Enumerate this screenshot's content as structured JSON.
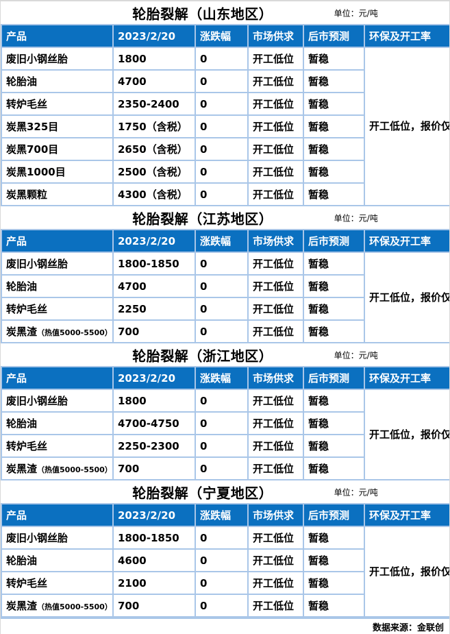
{
  "unit_label": "单位：元/吨",
  "note": "开工低位，报价仅供参考。",
  "columns": [
    "产品",
    "2023/2/20",
    "涨跌幅",
    "市场供求",
    "后市预测",
    "环保及开工率"
  ],
  "footer": {
    "source": "数据来源：金联创"
  },
  "colors": {
    "header_bg": "#0b70c0",
    "border": "#a9c6e8",
    "outer_border": "#d9d9d9",
    "bottom_bar": "#92b4e0"
  },
  "sections": [
    {
      "title": "轮胎裂解（山东地区）",
      "rows": [
        {
          "product": "废旧小钢丝胎",
          "price": "1800",
          "change": "0",
          "supply": "开工低位",
          "forecast": "暂稳"
        },
        {
          "product": "轮胎油",
          "price": "4700",
          "change": "0",
          "supply": "开工低位",
          "forecast": "暂稳"
        },
        {
          "product": "转炉毛丝",
          "price": "2350-2400",
          "change": "0",
          "supply": "开工低位",
          "forecast": "暂稳"
        },
        {
          "product": "炭黑325目",
          "price": "1750（含税）",
          "change": "0",
          "supply": "开工低位",
          "forecast": "暂稳"
        },
        {
          "product": "炭黑700目",
          "price": "2650（含税）",
          "change": "0",
          "supply": "开工低位",
          "forecast": "暂稳"
        },
        {
          "product": "炭黑1000目",
          "price": "2500（含税）",
          "change": "0",
          "supply": "开工低位",
          "forecast": "暂稳"
        },
        {
          "product": "炭黑颗粒",
          "price": "4300（含税）",
          "change": "0",
          "supply": "开工低位",
          "forecast": "暂稳"
        }
      ]
    },
    {
      "title": "轮胎裂解（江苏地区）",
      "rows": [
        {
          "product": "废旧小钢丝胎",
          "price": "1800-1850",
          "change": "0",
          "supply": "开工低位",
          "forecast": "暂稳"
        },
        {
          "product": "轮胎油",
          "price": "4700",
          "change": "0",
          "supply": "开工低位",
          "forecast": "暂稳"
        },
        {
          "product": "转炉毛丝",
          "price": "2250",
          "change": "0",
          "supply": "开工低位",
          "forecast": "暂稳"
        },
        {
          "product": "炭黑渣",
          "product_sub": "（热值5000-5500）",
          "price": "700",
          "change": "0",
          "supply": "开工低位",
          "forecast": "暂稳"
        }
      ]
    },
    {
      "title": "轮胎裂解（浙江地区）",
      "rows": [
        {
          "product": "废旧小钢丝胎",
          "price": "1800",
          "change": "0",
          "supply": "开工低位",
          "forecast": "暂稳"
        },
        {
          "product": "轮胎油",
          "price": "4700-4750",
          "change": "0",
          "supply": "开工低位",
          "forecast": "暂稳"
        },
        {
          "product": "转炉毛丝",
          "price": "2250-2300",
          "change": "0",
          "supply": "开工低位",
          "forecast": "暂稳"
        },
        {
          "product": "炭黑渣",
          "product_sub": "（热值5000-5500）",
          "price": "700",
          "change": "0",
          "supply": "开工低位",
          "forecast": "暂稳"
        }
      ]
    },
    {
      "title": "轮胎裂解（宁夏地区）",
      "rows": [
        {
          "product": "废旧小钢丝胎",
          "price": "1800-1850",
          "change": "0",
          "supply": "开工低位",
          "forecast": "暂稳"
        },
        {
          "product": "轮胎油",
          "price": "4600",
          "change": "0",
          "supply": "开工低位",
          "forecast": "暂稳"
        },
        {
          "product": "转炉毛丝",
          "price": "2100",
          "change": "0",
          "supply": "开工低位",
          "forecast": "暂稳"
        },
        {
          "product": "炭黑渣",
          "product_sub": "（热值5000-5500）",
          "price": "700",
          "change": "0",
          "supply": "开工低位",
          "forecast": "暂稳"
        }
      ]
    }
  ]
}
